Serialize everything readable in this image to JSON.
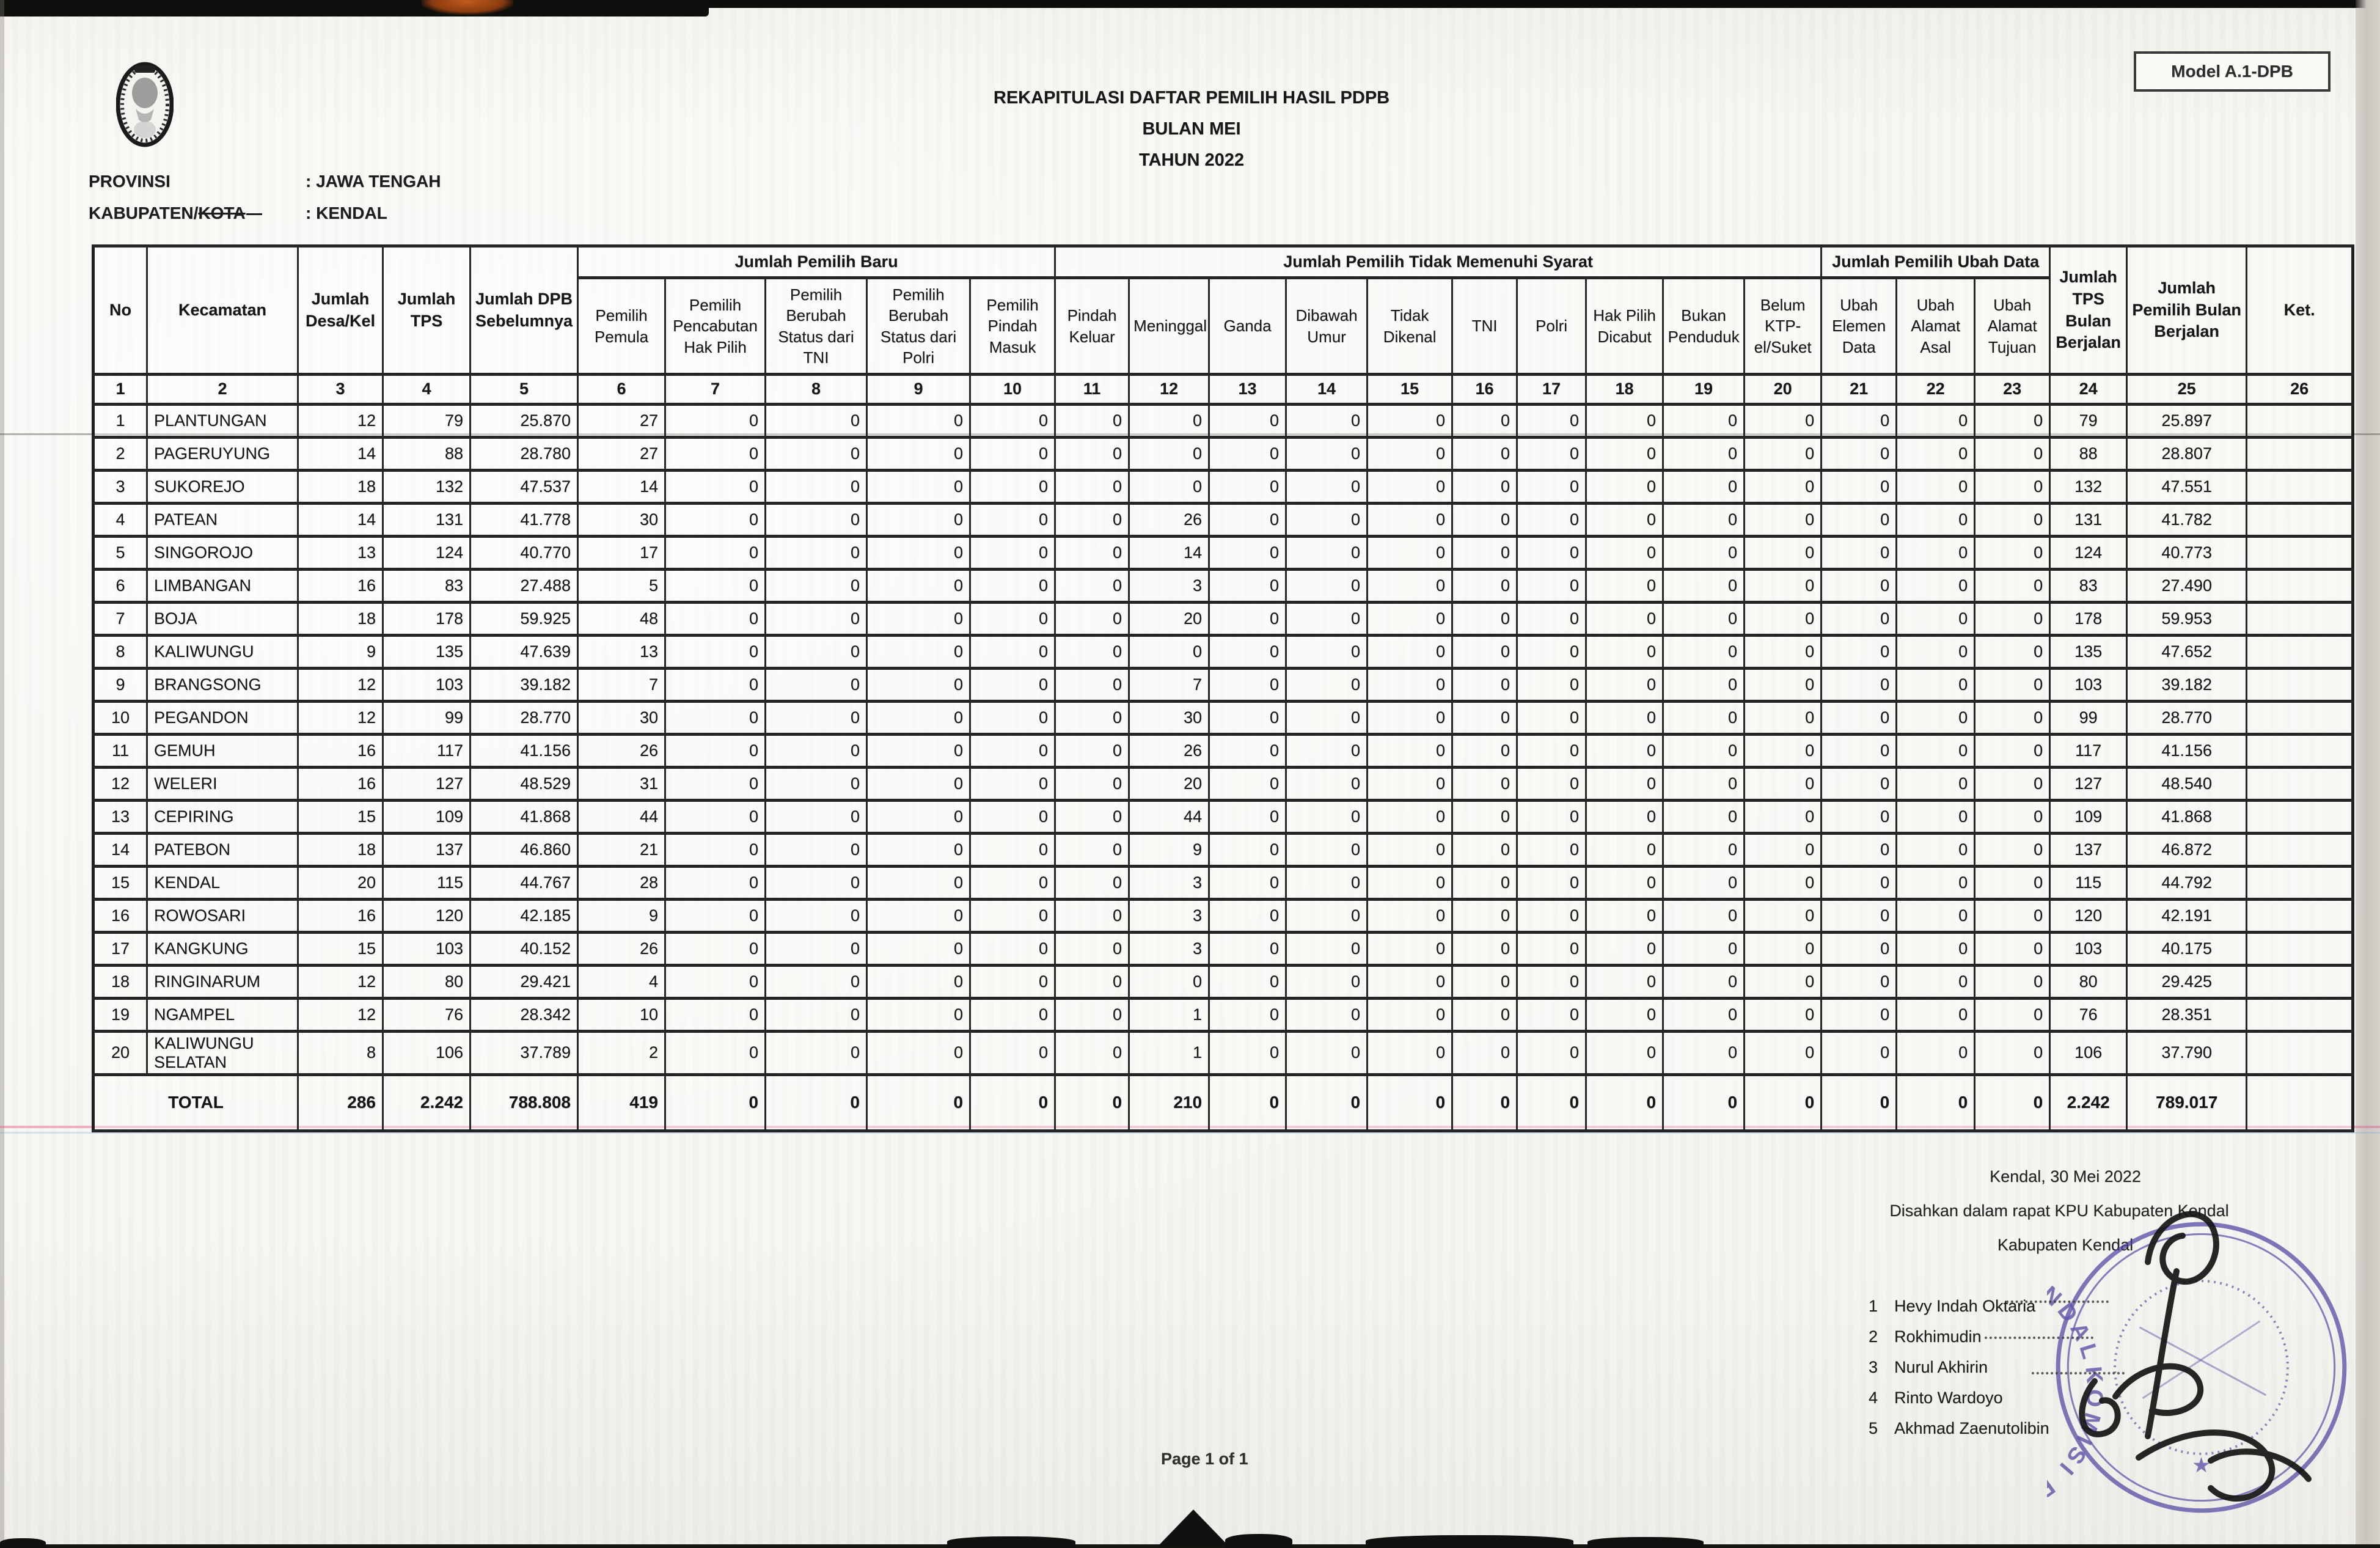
{
  "meta": {
    "model_label": "Model A.1-DPB",
    "page_footer": "Page 1 of 1"
  },
  "title": {
    "line1": "REKAPITULASI DAFTAR PEMILIH HASIL PDPB",
    "line2": "BULAN MEI",
    "line3": "TAHUN 2022"
  },
  "region": {
    "provinsi_label": "PROVINSI",
    "provinsi_value": ": JAWA TENGAH",
    "kabupaten_label_prefix": "KABUPATEN/",
    "kabupaten_label_struck": "KOTA",
    "kabupaten_value": ": KENDAL"
  },
  "table": {
    "top_headers": {
      "no": "No",
      "kecamatan": "Kecamatan",
      "desa": "Jumlah Desa/Kel",
      "tps": "Jumlah TPS",
      "dpb": "Jumlah DPB Sebelumnya",
      "baru_group": "Jumlah Pemilih Baru",
      "tms_group": "Jumlah Pemilih Tidak Memenuhi Syarat",
      "ubah_group": "Jumlah Pemilih Ubah Data",
      "tps_bulan": "Jumlah TPS Bulan Berjalan",
      "pemilih_bulan": "Jumlah Pemilih Bulan Berjalan",
      "ket": "Ket."
    },
    "sub_headers": [
      "Pemilih Pemula",
      "Pemilih Pencabutan Hak Pilih",
      "Pemilih Berubah Status dari TNI",
      "Pemilih Berubah Status dari Polri",
      "Pemilih Pindah Masuk",
      "Pindah Keluar",
      "Meninggal",
      "Ganda",
      "Dibawah Umur",
      "Tidak Dikenal",
      "TNI",
      "Polri",
      "Hak Pilih Dicabut",
      "Bukan Penduduk",
      "Belum KTP-el/Suket",
      "Ubah Elemen Data",
      "Ubah Alamat Asal",
      "Ubah Alamat Tujuan"
    ],
    "number_row": [
      "1",
      "2",
      "3",
      "4",
      "5",
      "6",
      "7",
      "8",
      "9",
      "10",
      "11",
      "12",
      "13",
      "14",
      "15",
      "16",
      "17",
      "18",
      "19",
      "20",
      "21",
      "22",
      "23",
      "24",
      "25",
      "26"
    ],
    "rows": [
      {
        "no": "1",
        "kecamatan": "PLANTUNGAN",
        "values": [
          "12",
          "79",
          "25.870",
          "27",
          "0",
          "0",
          "0",
          "0",
          "0",
          "0",
          "0",
          "0",
          "0",
          "0",
          "0",
          "0",
          "0",
          "0",
          "0",
          "0",
          "0",
          "79",
          "25.897",
          ""
        ]
      },
      {
        "no": "2",
        "kecamatan": "PAGERUYUNG",
        "values": [
          "14",
          "88",
          "28.780",
          "27",
          "0",
          "0",
          "0",
          "0",
          "0",
          "0",
          "0",
          "0",
          "0",
          "0",
          "0",
          "0",
          "0",
          "0",
          "0",
          "0",
          "0",
          "88",
          "28.807",
          ""
        ]
      },
      {
        "no": "3",
        "kecamatan": "SUKOREJO",
        "values": [
          "18",
          "132",
          "47.537",
          "14",
          "0",
          "0",
          "0",
          "0",
          "0",
          "0",
          "0",
          "0",
          "0",
          "0",
          "0",
          "0",
          "0",
          "0",
          "0",
          "0",
          "0",
          "132",
          "47.551",
          ""
        ]
      },
      {
        "no": "4",
        "kecamatan": "PATEAN",
        "values": [
          "14",
          "131",
          "41.778",
          "30",
          "0",
          "0",
          "0",
          "0",
          "0",
          "26",
          "0",
          "0",
          "0",
          "0",
          "0",
          "0",
          "0",
          "0",
          "0",
          "0",
          "0",
          "131",
          "41.782",
          ""
        ]
      },
      {
        "no": "5",
        "kecamatan": "SINGOROJO",
        "values": [
          "13",
          "124",
          "40.770",
          "17",
          "0",
          "0",
          "0",
          "0",
          "0",
          "14",
          "0",
          "0",
          "0",
          "0",
          "0",
          "0",
          "0",
          "0",
          "0",
          "0",
          "0",
          "124",
          "40.773",
          ""
        ]
      },
      {
        "no": "6",
        "kecamatan": "LIMBANGAN",
        "values": [
          "16",
          "83",
          "27.488",
          "5",
          "0",
          "0",
          "0",
          "0",
          "0",
          "3",
          "0",
          "0",
          "0",
          "0",
          "0",
          "0",
          "0",
          "0",
          "0",
          "0",
          "0",
          "83",
          "27.490",
          ""
        ]
      },
      {
        "no": "7",
        "kecamatan": "BOJA",
        "values": [
          "18",
          "178",
          "59.925",
          "48",
          "0",
          "0",
          "0",
          "0",
          "0",
          "20",
          "0",
          "0",
          "0",
          "0",
          "0",
          "0",
          "0",
          "0",
          "0",
          "0",
          "0",
          "178",
          "59.953",
          ""
        ]
      },
      {
        "no": "8",
        "kecamatan": "KALIWUNGU",
        "values": [
          "9",
          "135",
          "47.639",
          "13",
          "0",
          "0",
          "0",
          "0",
          "0",
          "0",
          "0",
          "0",
          "0",
          "0",
          "0",
          "0",
          "0",
          "0",
          "0",
          "0",
          "0",
          "135",
          "47.652",
          ""
        ]
      },
      {
        "no": "9",
        "kecamatan": "BRANGSONG",
        "values": [
          "12",
          "103",
          "39.182",
          "7",
          "0",
          "0",
          "0",
          "0",
          "0",
          "7",
          "0",
          "0",
          "0",
          "0",
          "0",
          "0",
          "0",
          "0",
          "0",
          "0",
          "0",
          "103",
          "39.182",
          ""
        ]
      },
      {
        "no": "10",
        "kecamatan": "PEGANDON",
        "values": [
          "12",
          "99",
          "28.770",
          "30",
          "0",
          "0",
          "0",
          "0",
          "0",
          "30",
          "0",
          "0",
          "0",
          "0",
          "0",
          "0",
          "0",
          "0",
          "0",
          "0",
          "0",
          "99",
          "28.770",
          ""
        ]
      },
      {
        "no": "11",
        "kecamatan": "GEMUH",
        "values": [
          "16",
          "117",
          "41.156",
          "26",
          "0",
          "0",
          "0",
          "0",
          "0",
          "26",
          "0",
          "0",
          "0",
          "0",
          "0",
          "0",
          "0",
          "0",
          "0",
          "0",
          "0",
          "117",
          "41.156",
          ""
        ]
      },
      {
        "no": "12",
        "kecamatan": "WELERI",
        "values": [
          "16",
          "127",
          "48.529",
          "31",
          "0",
          "0",
          "0",
          "0",
          "0",
          "20",
          "0",
          "0",
          "0",
          "0",
          "0",
          "0",
          "0",
          "0",
          "0",
          "0",
          "0",
          "127",
          "48.540",
          ""
        ]
      },
      {
        "no": "13",
        "kecamatan": "CEPIRING",
        "values": [
          "15",
          "109",
          "41.868",
          "44",
          "0",
          "0",
          "0",
          "0",
          "0",
          "44",
          "0",
          "0",
          "0",
          "0",
          "0",
          "0",
          "0",
          "0",
          "0",
          "0",
          "0",
          "109",
          "41.868",
          ""
        ]
      },
      {
        "no": "14",
        "kecamatan": "PATEBON",
        "values": [
          "18",
          "137",
          "46.860",
          "21",
          "0",
          "0",
          "0",
          "0",
          "0",
          "9",
          "0",
          "0",
          "0",
          "0",
          "0",
          "0",
          "0",
          "0",
          "0",
          "0",
          "0",
          "137",
          "46.872",
          ""
        ]
      },
      {
        "no": "15",
        "kecamatan": "KENDAL",
        "values": [
          "20",
          "115",
          "44.767",
          "28",
          "0",
          "0",
          "0",
          "0",
          "0",
          "3",
          "0",
          "0",
          "0",
          "0",
          "0",
          "0",
          "0",
          "0",
          "0",
          "0",
          "0",
          "115",
          "44.792",
          ""
        ]
      },
      {
        "no": "16",
        "kecamatan": "ROWOSARI",
        "values": [
          "16",
          "120",
          "42.185",
          "9",
          "0",
          "0",
          "0",
          "0",
          "0",
          "3",
          "0",
          "0",
          "0",
          "0",
          "0",
          "0",
          "0",
          "0",
          "0",
          "0",
          "0",
          "120",
          "42.191",
          ""
        ]
      },
      {
        "no": "17",
        "kecamatan": "KANGKUNG",
        "values": [
          "15",
          "103",
          "40.152",
          "26",
          "0",
          "0",
          "0",
          "0",
          "0",
          "3",
          "0",
          "0",
          "0",
          "0",
          "0",
          "0",
          "0",
          "0",
          "0",
          "0",
          "0",
          "103",
          "40.175",
          ""
        ]
      },
      {
        "no": "18",
        "kecamatan": "RINGINARUM",
        "values": [
          "12",
          "80",
          "29.421",
          "4",
          "0",
          "0",
          "0",
          "0",
          "0",
          "0",
          "0",
          "0",
          "0",
          "0",
          "0",
          "0",
          "0",
          "0",
          "0",
          "0",
          "0",
          "80",
          "29.425",
          ""
        ]
      },
      {
        "no": "19",
        "kecamatan": "NGAMPEL",
        "values": [
          "12",
          "76",
          "28.342",
          "10",
          "0",
          "0",
          "0",
          "0",
          "0",
          "1",
          "0",
          "0",
          "0",
          "0",
          "0",
          "0",
          "0",
          "0",
          "0",
          "0",
          "0",
          "76",
          "28.351",
          ""
        ]
      },
      {
        "no": "20",
        "kecamatan": "KALIWUNGU SELATAN",
        "values": [
          "8",
          "106",
          "37.789",
          "2",
          "0",
          "0",
          "0",
          "0",
          "0",
          "1",
          "0",
          "0",
          "0",
          "0",
          "0",
          "0",
          "0",
          "0",
          "0",
          "0",
          "0",
          "106",
          "37.790",
          ""
        ]
      }
    ],
    "total": {
      "label": "TOTAL",
      "values": [
        "286",
        "2.242",
        "788.808",
        "419",
        "0",
        "0",
        "0",
        "0",
        "0",
        "210",
        "0",
        "0",
        "0",
        "0",
        "0",
        "0",
        "0",
        "0",
        "0",
        "0",
        "0",
        "2.242",
        "789.017",
        ""
      ]
    }
  },
  "signature": {
    "date_line": "Kendal, 30 Mei  2022",
    "line2": "Disahkan dalam rapat KPU Kabupaten Kendal",
    "line3": "Kabupaten Kendal",
    "names": [
      {
        "num": "1",
        "name": "Hevy Indah Oktaria"
      },
      {
        "num": "2",
        "name": "Rokhimudin"
      },
      {
        "num": "3",
        "name": "Nurul Akhirin"
      },
      {
        "num": "4",
        "name": "Rinto Wardoyo"
      },
      {
        "num": "5",
        "name": "Akhmad Zaenutolibin"
      }
    ],
    "stamp_text": "KOMISI PEMILIHAN UMUM KABUPATEN KENDAL",
    "stamp_star": "★"
  },
  "colors": {
    "stamp_purple": "#4a41a0",
    "ink": "#1d1d1d",
    "scan_pink": "#e0608c"
  }
}
